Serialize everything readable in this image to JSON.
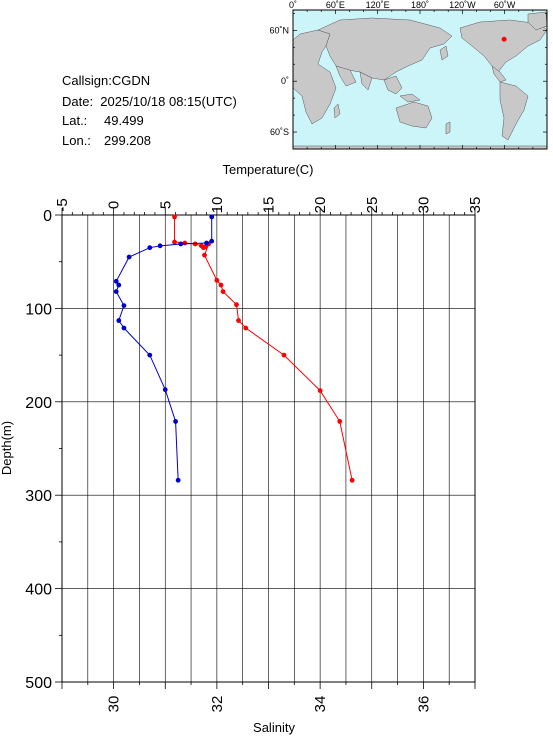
{
  "info": {
    "callsign": "Callsign:CGDN",
    "date": "Date:  2025/10/18 08:15(UTC)",
    "lat_label": "Lat.:",
    "lat_value": "49.499",
    "lon_label": "Lon.:",
    "lon_value": "299.208"
  },
  "map": {
    "top_labels": [
      "0˚",
      "60˚E",
      "120˚E",
      "180˚",
      "120˚W",
      "60˚W"
    ],
    "left_labels": [
      "60˚N",
      "0˚",
      "60˚S"
    ],
    "ocean_color": "#ccf5fa",
    "land_color": "#c8c8c8",
    "marker_color": "#ff0000",
    "marker_lon": 299.208,
    "marker_lat": 49.499
  },
  "chart_data": {
    "type": "line",
    "top_axis_label": "Temperature(C)",
    "bottom_axis_label": "Salinity",
    "ylabel": "Depth(m)",
    "temperature_ticks": [
      -5,
      0,
      5,
      10,
      15,
      20,
      25,
      30,
      35
    ],
    "salinity_ticks": [
      30,
      32,
      34,
      36
    ],
    "depth_ticks": [
      0,
      100,
      200,
      300,
      400,
      500
    ],
    "xlim_temperature": [
      -5,
      35
    ],
    "xlim_salinity": [
      29,
      37
    ],
    "ylim_depth": [
      0,
      500
    ],
    "grid": true,
    "series": [
      {
        "color": "#ff0000",
        "axis": "temperature",
        "points": [
          [
            5.9,
            2
          ],
          [
            5.9,
            29
          ],
          [
            6.9,
            30
          ],
          [
            7.9,
            31
          ],
          [
            8.5,
            33
          ],
          [
            8.7,
            35
          ],
          [
            8.9,
            34
          ],
          [
            9.2,
            31
          ],
          [
            8.8,
            43
          ],
          [
            10.0,
            70
          ],
          [
            10.4,
            75
          ],
          [
            10.6,
            82
          ],
          [
            11.9,
            96
          ],
          [
            12.1,
            113
          ],
          [
            12.8,
            121
          ],
          [
            16.5,
            150
          ],
          [
            20.0,
            188
          ],
          [
            21.9,
            221
          ],
          [
            23.1,
            284
          ]
        ]
      },
      {
        "color": "#0000cc",
        "axis": "salinity",
        "points": [
          [
            31.9,
            2
          ],
          [
            31.9,
            28
          ],
          [
            31.8,
            30
          ],
          [
            31.3,
            31
          ],
          [
            30.9,
            33
          ],
          [
            30.7,
            35
          ],
          [
            30.3,
            45
          ],
          [
            30.05,
            71
          ],
          [
            30.1,
            75
          ],
          [
            30.05,
            82
          ],
          [
            30.2,
            97
          ],
          [
            30.1,
            113
          ],
          [
            30.2,
            121
          ],
          [
            30.7,
            150
          ],
          [
            31.0,
            187
          ],
          [
            31.2,
            221
          ],
          [
            31.25,
            284
          ]
        ]
      }
    ]
  }
}
